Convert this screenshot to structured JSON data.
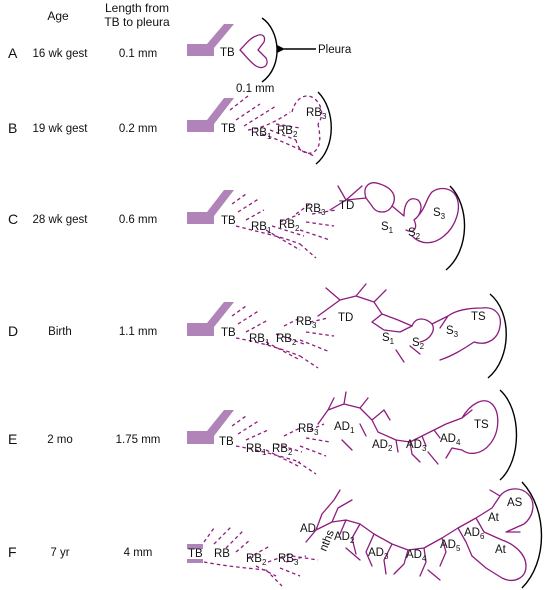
{
  "header": {
    "age": "Age",
    "length_line1": "Length from",
    "length_line2": "TB to pleura"
  },
  "rows": [
    {
      "letter": "A",
      "age": "16 wk gest",
      "length": "0.1 mm"
    },
    {
      "letter": "B",
      "age": "19 wk gest",
      "length": "0.2 mm"
    },
    {
      "letter": "C",
      "age": "28 wk gest",
      "length": "0.6 mm"
    },
    {
      "letter": "D",
      "age": "Birth",
      "length": "1.1 mm"
    },
    {
      "letter": "E",
      "age": "2 mo",
      "length": "1.75 mm"
    },
    {
      "letter": "F",
      "age": "7 yr",
      "length": "4 mm"
    }
  ],
  "annotations": {
    "pleura": "Pleura",
    "scale": "0.1 mm"
  },
  "labels": {
    "tb": "TB",
    "rb": "RB",
    "td": "TD",
    "s": "S",
    "ts": "TS",
    "ad": "AD",
    "at": "At",
    "as": "AS",
    "nths": "nths",
    "sub1": "1",
    "sub2": "2",
    "sub3": "3",
    "sub4": "4",
    "sub5": "5",
    "sub6": "6"
  },
  "colors": {
    "airway": "#8e1c7e",
    "trunk_fill": "#b084b8",
    "pleura": "#000000"
  }
}
